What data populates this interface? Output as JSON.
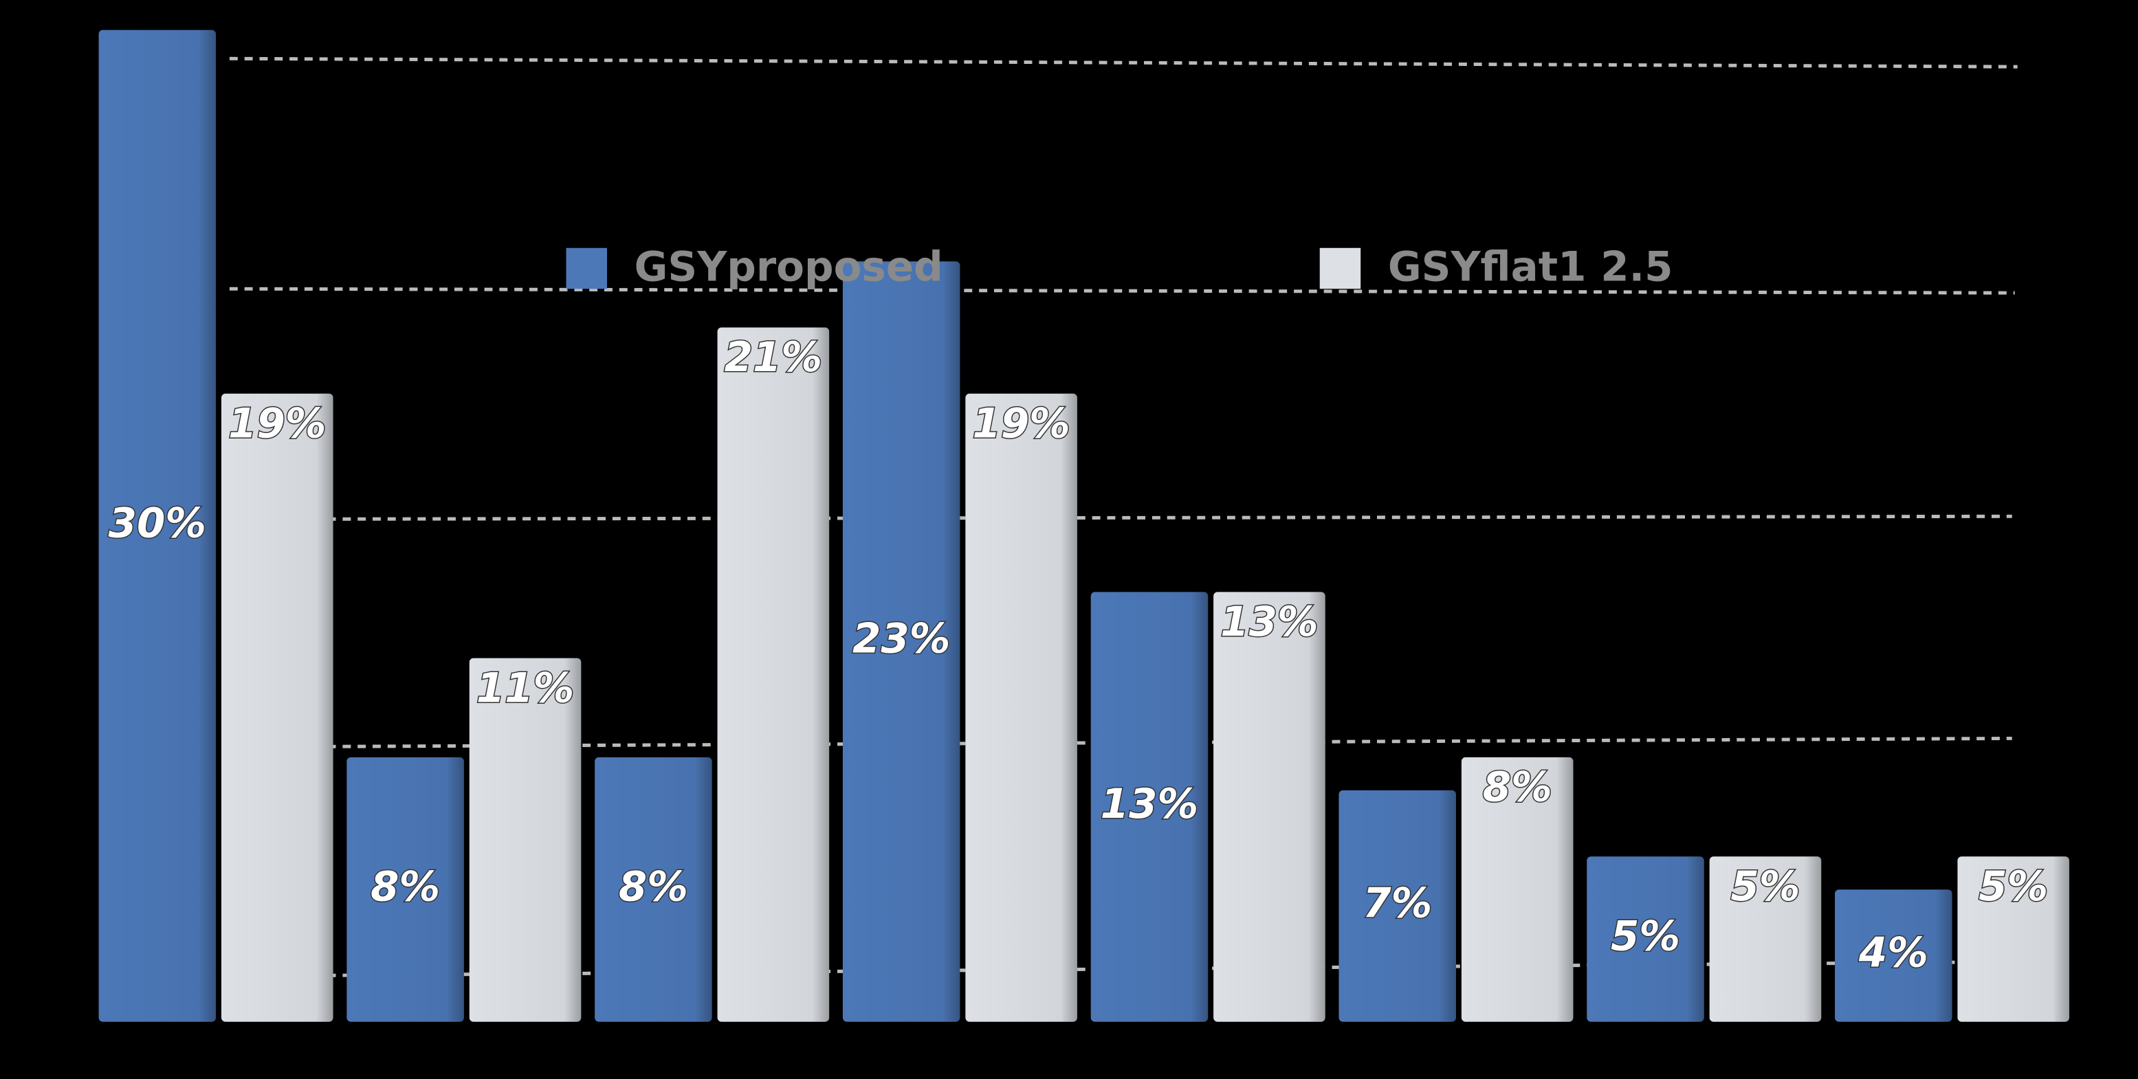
{
  "chart_data": {
    "type": "bar",
    "categories": [
      null,
      null,
      null,
      null,
      null,
      null,
      null,
      null
    ],
    "series": [
      {
        "name": "GSYproposed",
        "color": "#4c78b8",
        "values": [
          30,
          8,
          8,
          23,
          13,
          7,
          5,
          4
        ],
        "value_labels": [
          "30%",
          "8%",
          "8%",
          "23%",
          "13%",
          "7%",
          "5%",
          "4%"
        ]
      },
      {
        "name": "GSYflat1 2.5",
        "color": "#dde1e6",
        "values": [
          19,
          11,
          21,
          19,
          13,
          8,
          5,
          5
        ],
        "value_labels": [
          "19%",
          "11%",
          "21%",
          "19%",
          "13%",
          "8%",
          "5%",
          "5%"
        ]
      }
    ],
    "ylim": [
      0,
      30
    ]
  }
}
